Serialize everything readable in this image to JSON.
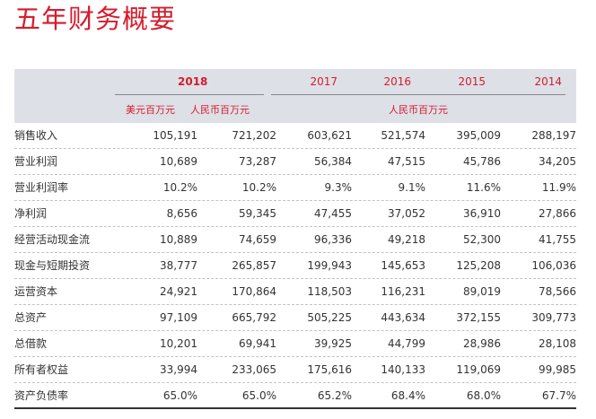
{
  "title": "五年财务概要",
  "header": {
    "years": [
      "2018",
      "2017",
      "2016",
      "2015",
      "2014"
    ],
    "unit_usd": "美元百万元",
    "unit_rmb_2018": "人民币百万元",
    "unit_rmb_prior": "人民币百万元"
  },
  "rows": [
    {
      "label": "销售收入",
      "values": [
        "105,191",
        "721,202",
        "603,621",
        "521,574",
        "395,009",
        "288,197"
      ]
    },
    {
      "label": "营业利润",
      "values": [
        "10,689",
        "73,287",
        "56,384",
        "47,515",
        "45,786",
        "34,205"
      ]
    },
    {
      "label": "营业利润率",
      "values": [
        "10.2%",
        "10.2%",
        "9.3%",
        "9.1%",
        "11.6%",
        "11.9%"
      ]
    },
    {
      "label": "净利润",
      "values": [
        "8,656",
        "59,345",
        "47,455",
        "37,052",
        "36,910",
        "27,866"
      ]
    },
    {
      "label": "经营活动现金流",
      "values": [
        "10,889",
        "74,659",
        "96,336",
        "49,218",
        "52,300",
        "41,755"
      ]
    },
    {
      "label": "现金与短期投资",
      "values": [
        "38,777",
        "265,857",
        "199,943",
        "145,653",
        "125,208",
        "106,036"
      ]
    },
    {
      "label": "运营资本",
      "values": [
        "24,921",
        "170,864",
        "118,503",
        "116,231",
        "89,019",
        "78,566"
      ]
    },
    {
      "label": "总资产",
      "values": [
        "97,109",
        "665,792",
        "505,225",
        "443,634",
        "372,155",
        "309,773"
      ]
    },
    {
      "label": "总借款",
      "values": [
        "10,201",
        "69,941",
        "39,925",
        "44,799",
        "28,986",
        "28,108"
      ]
    },
    {
      "label": "所有者权益",
      "values": [
        "33,994",
        "233,065",
        "175,616",
        "140,133",
        "119,069",
        "99,985"
      ]
    },
    {
      "label": "资产负债率",
      "values": [
        "65.0%",
        "65.0%",
        "65.2%",
        "68.4%",
        "68.0%",
        "67.7%"
      ]
    }
  ],
  "colors": {
    "accent": "#d61c2c",
    "header_band": "#dde0e7",
    "text": "#333333"
  }
}
